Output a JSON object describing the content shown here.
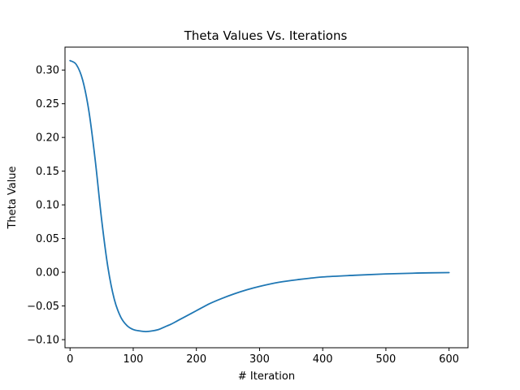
{
  "chart_data": {
    "type": "line",
    "title": "Theta Values Vs. Iterations",
    "xlabel": "# Iteration",
    "ylabel": "Theta Value",
    "xlim": [
      -8,
      630
    ],
    "ylim": [
      -0.112,
      0.334
    ],
    "xticks": [
      0,
      100,
      200,
      300,
      400,
      500,
      600
    ],
    "xtick_labels": [
      "0",
      "100",
      "200",
      "300",
      "400",
      "500",
      "600"
    ],
    "yticks": [
      -0.1,
      -0.05,
      0.0,
      0.05,
      0.1,
      0.15,
      0.2,
      0.25,
      0.3
    ],
    "ytick_labels": [
      "−0.10",
      "−0.05",
      "0.00",
      "0.05",
      "0.10",
      "0.15",
      "0.20",
      "0.25",
      "0.30"
    ],
    "grid": false,
    "line_color": "#1f77b4",
    "series": [
      {
        "x": [
          0,
          10,
          20,
          30,
          40,
          50,
          60,
          70,
          80,
          90,
          100,
          110,
          120,
          130,
          140,
          150,
          160,
          170,
          180,
          200,
          220,
          240,
          260,
          280,
          300,
          330,
          360,
          400,
          450,
          500,
          550,
          600
        ],
        "y": [
          0.314,
          0.308,
          0.285,
          0.238,
          0.165,
          0.078,
          0.007,
          -0.04,
          -0.066,
          -0.079,
          -0.085,
          -0.087,
          -0.088,
          -0.087,
          -0.085,
          -0.081,
          -0.077,
          -0.072,
          -0.067,
          -0.057,
          -0.047,
          -0.039,
          -0.032,
          -0.026,
          -0.021,
          -0.015,
          -0.011,
          -0.007,
          -0.0045,
          -0.0025,
          -0.0012,
          -0.0005
        ]
      }
    ]
  }
}
